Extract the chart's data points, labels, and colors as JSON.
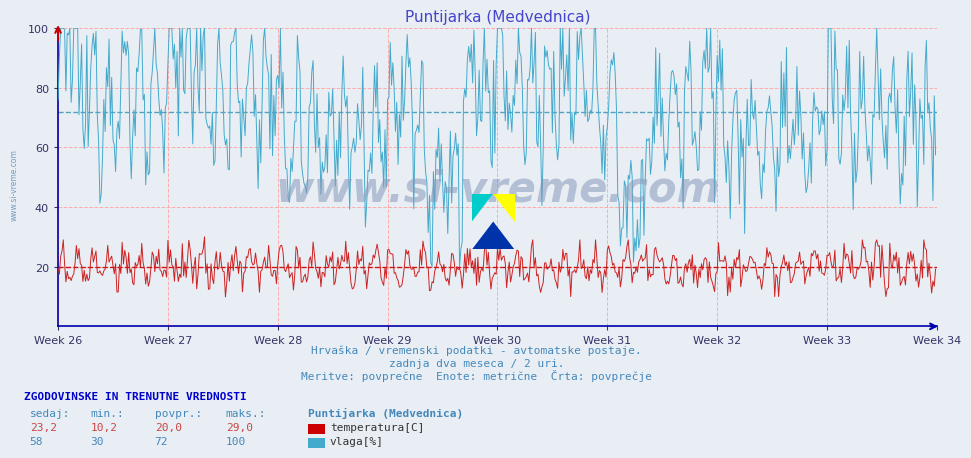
{
  "title": "Puntijarka (Medvednica)",
  "title_color": "#4444cc",
  "bg_color": "#e8eef4",
  "plot_bg_color": "#e8eef4",
  "grid_color_h": "#ffaaaa",
  "grid_color_v": "#ffaaaa",
  "avg_temp": 20.0,
  "avg_humidity": 72.0,
  "avg_temp_color": "#cc0000",
  "avg_humidity_color": "#4499bb",
  "xlim": [
    0,
    672
  ],
  "ylim": [
    0,
    100
  ],
  "yticks": [
    20,
    40,
    60,
    80,
    100
  ],
  "week_labels": [
    "Week 26",
    "Week 27",
    "Week 28",
    "Week 29",
    "Week 30",
    "Week 31",
    "Week 32",
    "Week 33",
    "Week 34"
  ],
  "week_positions": [
    0,
    84,
    168,
    252,
    336,
    420,
    504,
    588,
    672
  ],
  "temp_color": "#cc2222",
  "humidity_color": "#44aacc",
  "watermark": "www.si-vreme.com",
  "subtitle1": "Hrvaška / vremenski podatki - avtomatske postaje.",
  "subtitle2": "zadnja dva meseca / 2 uri.",
  "subtitle3": "Meritve: povprečne  Enote: metrične  Črta: povprečje",
  "subtitle_color": "#4488bb",
  "footer_title": "ZGODOVINSKE IN TRENUTNE VREDNOSTI",
  "footer_color": "#0000cc",
  "table_headers": [
    "sedaj:",
    "min.:",
    "povpr.:",
    "maks.:"
  ],
  "temp_row": [
    "23,2",
    "10,2",
    "20,0",
    "29,0"
  ],
  "humidity_row": [
    "58",
    "30",
    "72",
    "100"
  ],
  "legend_station": "Puntijarka (Medvednica)",
  "legend_temp": "temperatura[C]",
  "legend_humidity": "vlaga[%]",
  "temp_swatch_color": "#cc0000",
  "humidity_swatch_color": "#44aacc",
  "spine_color": "#0000aa",
  "tick_color": "#333366"
}
